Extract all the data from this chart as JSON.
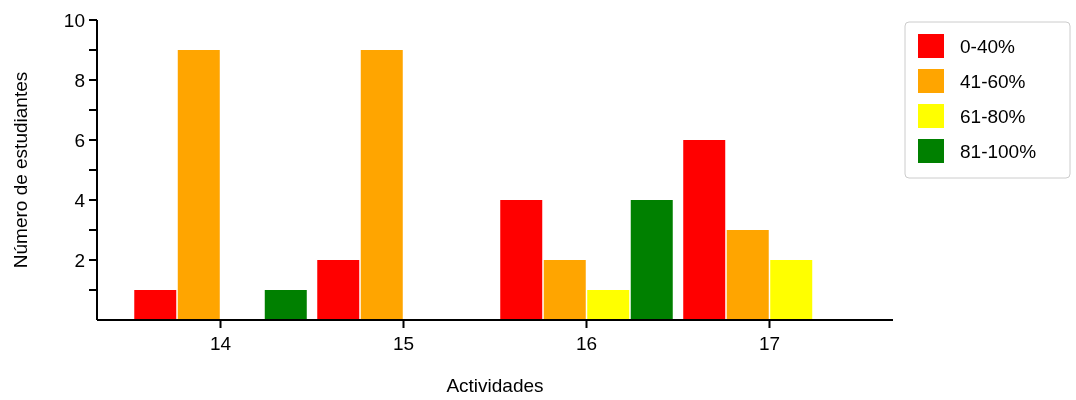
{
  "chart_data": {
    "type": "bar",
    "xlabel": "Actividades",
    "ylabel": "Número de estudiantes",
    "categories": [
      "14",
      "15",
      "16",
      "17"
    ],
    "series": [
      {
        "name": "0-40%",
        "color": "#ff0000",
        "values": [
          1,
          2,
          4,
          6
        ]
      },
      {
        "name": "41-60%",
        "color": "#ffa500",
        "values": [
          9,
          9,
          2,
          3
        ]
      },
      {
        "name": "61-80%",
        "color": "#ffff00",
        "values": [
          0,
          0,
          1,
          2
        ]
      },
      {
        "name": "81-100%",
        "color": "#008000",
        "values": [
          1,
          0,
          4,
          0
        ]
      }
    ],
    "ylim": [
      0,
      10
    ],
    "yticks": [
      {
        "value": 1,
        "label": null
      },
      2,
      {
        "value": 3,
        "label": null
      },
      4,
      {
        "value": 5,
        "label": null
      },
      6,
      {
        "value": 7,
        "label": null
      },
      8,
      {
        "value": 9,
        "label": null
      },
      10
    ],
    "grid": false,
    "legend": "right"
  }
}
